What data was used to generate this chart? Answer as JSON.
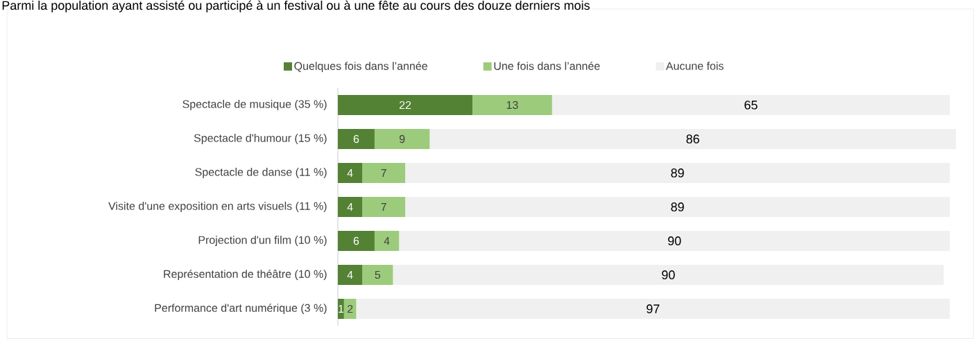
{
  "chart_data": {
    "type": "bar",
    "orientation": "horizontal",
    "stacked": true,
    "title": "Parmi la population ayant assisté ou participé à un festival ou à une fête au cours des douze derniers mois",
    "categories": [
      "Spectacle de musique (35 %)",
      "Spectacle d'humour  (15 %)",
      "Spectacle de danse  (11 %)",
      "Visite d'une exposition en arts visuels (11 %)",
      "Projection d'un film (10 %)",
      "Représentation de théâtre  (10 %)",
      "Performance d'art numérique (3 %)"
    ],
    "series": [
      {
        "name": "Quelques fois dans l’année",
        "color": "#548235",
        "values": [
          22,
          6,
          4,
          4,
          6,
          4,
          1
        ]
      },
      {
        "name": "Une fois dans l’année",
        "color": "#9dcb7c",
        "values": [
          13,
          9,
          7,
          7,
          4,
          5,
          2
        ]
      },
      {
        "name": "Aucune fois",
        "color": "#f0f0f0",
        "values": [
          65,
          86,
          89,
          89,
          90,
          90,
          97
        ]
      }
    ],
    "data_labels": true,
    "legend": "top"
  }
}
